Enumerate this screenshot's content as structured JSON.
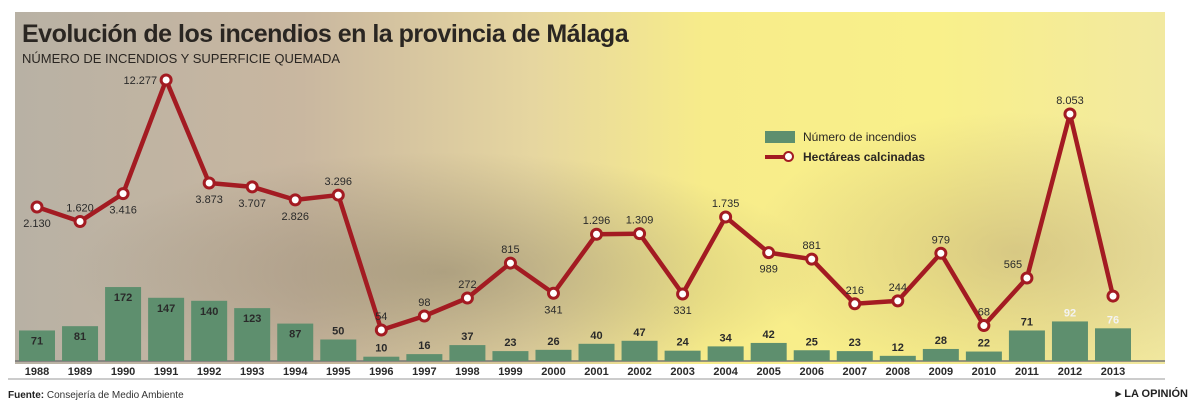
{
  "chart_data": {
    "type": "bar+line",
    "title": "Evolución de los incendios en la provincia de Málaga",
    "subtitle": "NÚMERO DE INCENDIOS Y SUPERFICIE QUEMADA",
    "categories": [
      "1988",
      "1989",
      "1990",
      "1991",
      "1992",
      "1993",
      "1994",
      "1995",
      "1996",
      "1997",
      "1998",
      "1999",
      "2000",
      "2001",
      "2002",
      "2003",
      "2004",
      "2005",
      "2006",
      "2007",
      "2008",
      "2009",
      "2010",
      "2011",
      "2012",
      "2013"
    ],
    "series": [
      {
        "name": "Número de incendios",
        "type": "bar",
        "color": "#5e8f6e",
        "values": [
          71,
          81,
          172,
          147,
          140,
          123,
          87,
          50,
          10,
          16,
          37,
          23,
          26,
          40,
          47,
          24,
          34,
          42,
          25,
          23,
          12,
          28,
          22,
          71,
          92,
          76
        ],
        "labels": [
          "71",
          "81",
          "172",
          "147",
          "140",
          "123",
          "87",
          "50",
          "10",
          "16",
          "37",
          "23",
          "26",
          "40",
          "47",
          "24",
          "34",
          "42",
          "25",
          "23",
          "12",
          "28",
          "22",
          "71",
          "92",
          "76"
        ]
      },
      {
        "name": "Hectáreas calcinadas",
        "type": "line",
        "color": "#a31b22",
        "values": [
          2130,
          1620,
          3416,
          12277,
          3873,
          3707,
          2826,
          3296,
          54,
          98,
          272,
          815,
          341,
          1296,
          1309,
          331,
          1735,
          989,
          881,
          216,
          244,
          979,
          68,
          565,
          8053,
          300
        ],
        "labels": [
          "2.130",
          "1.620",
          "3.416",
          "12.277",
          "3.873",
          "3.707",
          "2.826",
          "3.296",
          "54",
          "98",
          "272",
          "815",
          "341",
          "1.296",
          "1.309",
          "331",
          "1.735",
          "989",
          "881",
          "216",
          "244",
          "979",
          "68",
          "565",
          "8.053",
          ""
        ]
      }
    ],
    "legend_position": "top-right",
    "grid": false
  },
  "legend": {
    "bars": "Número de incendios",
    "line": "Hectáreas calcinadas"
  },
  "footer": {
    "source_label": "Fuente:",
    "source": "Consejería de Medio Ambiente",
    "brand": "▸ LA OPINIÓN"
  }
}
